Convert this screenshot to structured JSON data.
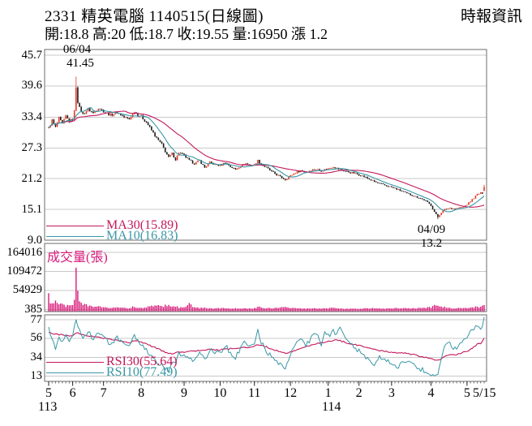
{
  "header": {
    "title": "2331  精英電腦 1140515(日線圖)",
    "source": "時報資訊",
    "info": "開:18.8 高:20 低:18.7 收:19.55 量:16950 漲 1.2"
  },
  "colors": {
    "crimson": "#c2185b",
    "magenta": "#d81b7a",
    "teal": "#3a97a6",
    "candle_up": "#e53825",
    "candle_down": "#1a1a1a",
    "grid": "#c9c9c9",
    "border": "#6b6b6b",
    "text": "#000000"
  },
  "legends": {
    "ma30": "MA30(15.89)",
    "ma10": "MA10(16.83)",
    "rsi30": "RSI30(55.64)",
    "rsi10": "RSI10(77.49)"
  },
  "annotations": {
    "high": {
      "date": "06/04",
      "value": "41.45"
    },
    "low": {
      "date": "04/09",
      "value": "13.2"
    }
  },
  "volume_pane_title": "成交量(張)",
  "chart_data": {
    "type": "candlestick",
    "title": "2331 精英電腦 日線圖 (year 113/5 to 114/5/15)",
    "days": 255,
    "price_axis_ticks": [
      45.7,
      39.6,
      33.4,
      27.3,
      21.2,
      15.1,
      9.0
    ],
    "price_ylim": [
      9.0,
      45.7
    ],
    "volume_axis_ticks": [
      164016,
      109472,
      54929,
      385
    ],
    "volume_ylim": [
      385,
      164016
    ],
    "rsi_axis_ticks": [
      77,
      56,
      34,
      13
    ],
    "rsi_ylim": [
      13,
      77
    ],
    "x_axis": {
      "month_labels": [
        "5",
        "6",
        "7",
        "8",
        "9",
        "10",
        "11",
        "12",
        "1",
        "2",
        "3",
        "4",
        "5"
      ],
      "month_start_days": [
        0,
        14,
        32,
        54,
        79,
        100,
        120,
        141,
        163,
        181,
        200,
        223,
        244
      ],
      "end_label": "5/15",
      "year_left": "113",
      "year_right": "114",
      "year_right_month_index": 8
    },
    "last_day": {
      "open": 18.8,
      "high": 20,
      "low": 18.7,
      "close": 19.55,
      "volume": 16950,
      "change": 1.2
    },
    "high_point": {
      "date": "06/04",
      "price": 41.45,
      "day": 16
    },
    "low_point": {
      "date": "04/09",
      "price": 13.2,
      "day": 227
    },
    "ma30_last": 15.89,
    "ma10_last": 16.83,
    "rsi30_last": 55.64,
    "rsi10_last": 77.49,
    "close_waypoints": [
      [
        0,
        31.2
      ],
      [
        2,
        32.8
      ],
      [
        4,
        31.4
      ],
      [
        6,
        33.2
      ],
      [
        8,
        32.0
      ],
      [
        10,
        33.6
      ],
      [
        12,
        32.6
      ],
      [
        14,
        33.0
      ],
      [
        15,
        34.5
      ],
      [
        16,
        39.5
      ],
      [
        17,
        36.5
      ],
      [
        18,
        35.2
      ],
      [
        20,
        34.0
      ],
      [
        23,
        35.0
      ],
      [
        26,
        34.2
      ],
      [
        29,
        35.3
      ],
      [
        32,
        34.6
      ],
      [
        36,
        33.8
      ],
      [
        40,
        34.4
      ],
      [
        44,
        33.4
      ],
      [
        47,
        33.0
      ],
      [
        50,
        34.6
      ],
      [
        52,
        33.8
      ],
      [
        54,
        33.5
      ],
      [
        57,
        32.4
      ],
      [
        60,
        30.8
      ],
      [
        63,
        29.2
      ],
      [
        66,
        28.0
      ],
      [
        68,
        26.6
      ],
      [
        70,
        25.4
      ],
      [
        72,
        26.2
      ],
      [
        74,
        25.0
      ],
      [
        76,
        26.4
      ],
      [
        79,
        25.8
      ],
      [
        82,
        24.8
      ],
      [
        85,
        24.2
      ],
      [
        88,
        24.8
      ],
      [
        91,
        23.4
      ],
      [
        94,
        24.4
      ],
      [
        97,
        24.0
      ],
      [
        100,
        23.8
      ],
      [
        103,
        24.4
      ],
      [
        106,
        23.6
      ],
      [
        109,
        23.0
      ],
      [
        112,
        23.8
      ],
      [
        115,
        24.2
      ],
      [
        118,
        23.8
      ],
      [
        120,
        24.0
      ],
      [
        122,
        24.8
      ],
      [
        124,
        24.0
      ],
      [
        127,
        23.4
      ],
      [
        130,
        22.6
      ],
      [
        133,
        22.0
      ],
      [
        136,
        21.4
      ],
      [
        138,
        21.0
      ],
      [
        141,
        21.8
      ],
      [
        144,
        22.4
      ],
      [
        147,
        22.8
      ],
      [
        150,
        22.5
      ],
      [
        153,
        22.9
      ],
      [
        156,
        23.1
      ],
      [
        159,
        22.8
      ],
      [
        163,
        23.2
      ],
      [
        166,
        23.6
      ],
      [
        169,
        23.1
      ],
      [
        172,
        22.8
      ],
      [
        175,
        22.5
      ],
      [
        178,
        22.3
      ],
      [
        181,
        22.0
      ],
      [
        184,
        21.6
      ],
      [
        187,
        21.1
      ],
      [
        190,
        20.6
      ],
      [
        193,
        20.2
      ],
      [
        196,
        19.9
      ],
      [
        200,
        19.5
      ],
      [
        204,
        19.0
      ],
      [
        208,
        18.4
      ],
      [
        212,
        17.9
      ],
      [
        216,
        17.4
      ],
      [
        220,
        16.8
      ],
      [
        223,
        15.9
      ],
      [
        225,
        14.6
      ],
      [
        227,
        13.6
      ],
      [
        229,
        14.5
      ],
      [
        231,
        15.1
      ],
      [
        234,
        15.4
      ],
      [
        237,
        15.2
      ],
      [
        240,
        15.5
      ],
      [
        242,
        15.6
      ],
      [
        244,
        16.1
      ],
      [
        246,
        16.7
      ],
      [
        248,
        17.4
      ],
      [
        250,
        18.1
      ],
      [
        252,
        18.35
      ],
      [
        253,
        18.35
      ],
      [
        254,
        19.55
      ]
    ],
    "ohlc_overrides": {
      "16": {
        "h": 41.45
      },
      "227": {
        "l": 13.2
      },
      "254": {
        "o": 18.8,
        "h": 20.0,
        "l": 18.7,
        "c": 19.55
      }
    },
    "volume_waypoints": [
      [
        0,
        55000
      ],
      [
        1,
        30000
      ],
      [
        2,
        20000
      ],
      [
        4,
        38000
      ],
      [
        6,
        16000
      ],
      [
        8,
        22000
      ],
      [
        10,
        12000
      ],
      [
        12,
        18000
      ],
      [
        14,
        15000
      ],
      [
        15,
        35000
      ],
      [
        16,
        164016
      ],
      [
        17,
        60000
      ],
      [
        18,
        38000
      ],
      [
        20,
        24000
      ],
      [
        23,
        14000
      ],
      [
        26,
        10000
      ],
      [
        29,
        16000
      ],
      [
        32,
        9000
      ],
      [
        36,
        7000
      ],
      [
        40,
        8000
      ],
      [
        44,
        6000
      ],
      [
        47,
        5500
      ],
      [
        50,
        12000
      ],
      [
        52,
        8000
      ],
      [
        54,
        7000
      ],
      [
        57,
        9000
      ],
      [
        60,
        12000
      ],
      [
        63,
        14000
      ],
      [
        66,
        12000
      ],
      [
        68,
        15000
      ],
      [
        70,
        18000
      ],
      [
        72,
        10000
      ],
      [
        74,
        12000
      ],
      [
        76,
        8000
      ],
      [
        79,
        7000
      ],
      [
        82,
        25000
      ],
      [
        84,
        9000
      ],
      [
        88,
        6000
      ],
      [
        91,
        8000
      ],
      [
        94,
        5000
      ],
      [
        97,
        4500
      ],
      [
        100,
        5000
      ],
      [
        103,
        6000
      ],
      [
        106,
        4500
      ],
      [
        109,
        5000
      ],
      [
        112,
        4000
      ],
      [
        115,
        4500
      ],
      [
        118,
        4000
      ],
      [
        120,
        5000
      ],
      [
        122,
        12000
      ],
      [
        124,
        7000
      ],
      [
        127,
        5000
      ],
      [
        130,
        6000
      ],
      [
        133,
        7000
      ],
      [
        136,
        8000
      ],
      [
        138,
        9000
      ],
      [
        141,
        6000
      ],
      [
        144,
        5000
      ],
      [
        147,
        4500
      ],
      [
        150,
        4000
      ],
      [
        153,
        4500
      ],
      [
        156,
        5000
      ],
      [
        159,
        4000
      ],
      [
        163,
        5500
      ],
      [
        166,
        6000
      ],
      [
        169,
        4500
      ],
      [
        172,
        4000
      ],
      [
        175,
        3500
      ],
      [
        178,
        3600
      ],
      [
        181,
        4000
      ],
      [
        184,
        4500
      ],
      [
        187,
        5000
      ],
      [
        190,
        5500
      ],
      [
        193,
        4500
      ],
      [
        196,
        4000
      ],
      [
        200,
        5000
      ],
      [
        204,
        5500
      ],
      [
        208,
        6000
      ],
      [
        212,
        5000
      ],
      [
        216,
        6500
      ],
      [
        220,
        7000
      ],
      [
        223,
        9000
      ],
      [
        225,
        14000
      ],
      [
        227,
        16000
      ],
      [
        229,
        12000
      ],
      [
        231,
        9000
      ],
      [
        234,
        6000
      ],
      [
        237,
        5000
      ],
      [
        240,
        5500
      ],
      [
        242,
        5000
      ],
      [
        244,
        6000
      ],
      [
        246,
        7000
      ],
      [
        248,
        9000
      ],
      [
        250,
        11000
      ],
      [
        252,
        9000
      ],
      [
        253,
        13000
      ],
      [
        254,
        16950
      ]
    ],
    "rsi10_waypoints": [
      [
        0,
        68
      ],
      [
        2,
        55
      ],
      [
        4,
        46
      ],
      [
        6,
        60
      ],
      [
        8,
        50
      ],
      [
        10,
        62
      ],
      [
        12,
        54
      ],
      [
        14,
        58
      ],
      [
        16,
        78
      ],
      [
        18,
        66
      ],
      [
        20,
        58
      ],
      [
        23,
        63
      ],
      [
        26,
        55
      ],
      [
        29,
        62
      ],
      [
        32,
        57
      ],
      [
        36,
        50
      ],
      [
        40,
        56
      ],
      [
        44,
        48
      ],
      [
        47,
        45
      ],
      [
        50,
        58
      ],
      [
        52,
        52
      ],
      [
        54,
        50
      ],
      [
        57,
        42
      ],
      [
        60,
        34
      ],
      [
        63,
        28
      ],
      [
        66,
        25
      ],
      [
        68,
        22
      ],
      [
        70,
        19
      ],
      [
        72,
        30
      ],
      [
        74,
        26
      ],
      [
        76,
        38
      ],
      [
        79,
        36
      ],
      [
        82,
        32
      ],
      [
        85,
        30
      ],
      [
        88,
        42
      ],
      [
        91,
        30
      ],
      [
        94,
        44
      ],
      [
        97,
        40
      ],
      [
        100,
        38
      ],
      [
        103,
        48
      ],
      [
        106,
        40
      ],
      [
        109,
        34
      ],
      [
        112,
        46
      ],
      [
        115,
        52
      ],
      [
        118,
        46
      ],
      [
        120,
        50
      ],
      [
        122,
        64
      ],
      [
        124,
        52
      ],
      [
        127,
        42
      ],
      [
        130,
        34
      ],
      [
        133,
        28
      ],
      [
        136,
        24
      ],
      [
        138,
        20
      ],
      [
        141,
        36
      ],
      [
        144,
        48
      ],
      [
        147,
        55
      ],
      [
        150,
        48
      ],
      [
        153,
        56
      ],
      [
        156,
        60
      ],
      [
        159,
        50
      ],
      [
        161,
        62
      ],
      [
        163,
        58
      ],
      [
        166,
        66
      ],
      [
        168,
        60
      ],
      [
        170,
        68
      ],
      [
        172,
        58
      ],
      [
        175,
        50
      ],
      [
        178,
        46
      ],
      [
        181,
        42
      ],
      [
        184,
        36
      ],
      [
        187,
        30
      ],
      [
        190,
        26
      ],
      [
        193,
        34
      ],
      [
        196,
        30
      ],
      [
        200,
        28
      ],
      [
        204,
        24
      ],
      [
        208,
        30
      ],
      [
        212,
        26
      ],
      [
        216,
        22
      ],
      [
        220,
        18
      ],
      [
        223,
        15
      ],
      [
        225,
        13
      ],
      [
        227,
        15
      ],
      [
        229,
        35
      ],
      [
        231,
        45
      ],
      [
        234,
        50
      ],
      [
        237,
        44
      ],
      [
        240,
        50
      ],
      [
        242,
        55
      ],
      [
        244,
        58
      ],
      [
        246,
        62
      ],
      [
        248,
        66
      ],
      [
        250,
        70
      ],
      [
        252,
        66
      ],
      [
        254,
        77.49
      ]
    ],
    "rsi30_waypoints": [
      [
        0,
        62
      ],
      [
        6,
        60
      ],
      [
        10,
        59
      ],
      [
        14,
        58
      ],
      [
        16,
        62
      ],
      [
        20,
        60
      ],
      [
        26,
        58
      ],
      [
        32,
        56
      ],
      [
        40,
        54
      ],
      [
        47,
        51
      ],
      [
        50,
        53
      ],
      [
        54,
        52
      ],
      [
        60,
        47
      ],
      [
        66,
        42
      ],
      [
        70,
        38
      ],
      [
        76,
        40
      ],
      [
        82,
        41
      ],
      [
        88,
        42
      ],
      [
        94,
        43
      ],
      [
        100,
        43
      ],
      [
        106,
        44
      ],
      [
        112,
        45
      ],
      [
        118,
        46
      ],
      [
        122,
        49
      ],
      [
        127,
        46
      ],
      [
        133,
        42
      ],
      [
        138,
        39
      ],
      [
        144,
        42
      ],
      [
        150,
        46
      ],
      [
        156,
        50
      ],
      [
        163,
        52
      ],
      [
        168,
        54
      ],
      [
        172,
        52
      ],
      [
        178,
        49
      ],
      [
        184,
        46
      ],
      [
        190,
        43
      ],
      [
        196,
        41
      ],
      [
        200,
        40
      ],
      [
        208,
        39
      ],
      [
        216,
        36
      ],
      [
        220,
        34
      ],
      [
        225,
        32
      ],
      [
        227,
        31
      ],
      [
        231,
        36
      ],
      [
        234,
        38
      ],
      [
        237,
        37
      ],
      [
        240,
        39
      ],
      [
        244,
        41
      ],
      [
        246,
        43
      ],
      [
        248,
        46
      ],
      [
        250,
        49
      ],
      [
        252,
        50
      ],
      [
        254,
        55.64
      ]
    ]
  }
}
